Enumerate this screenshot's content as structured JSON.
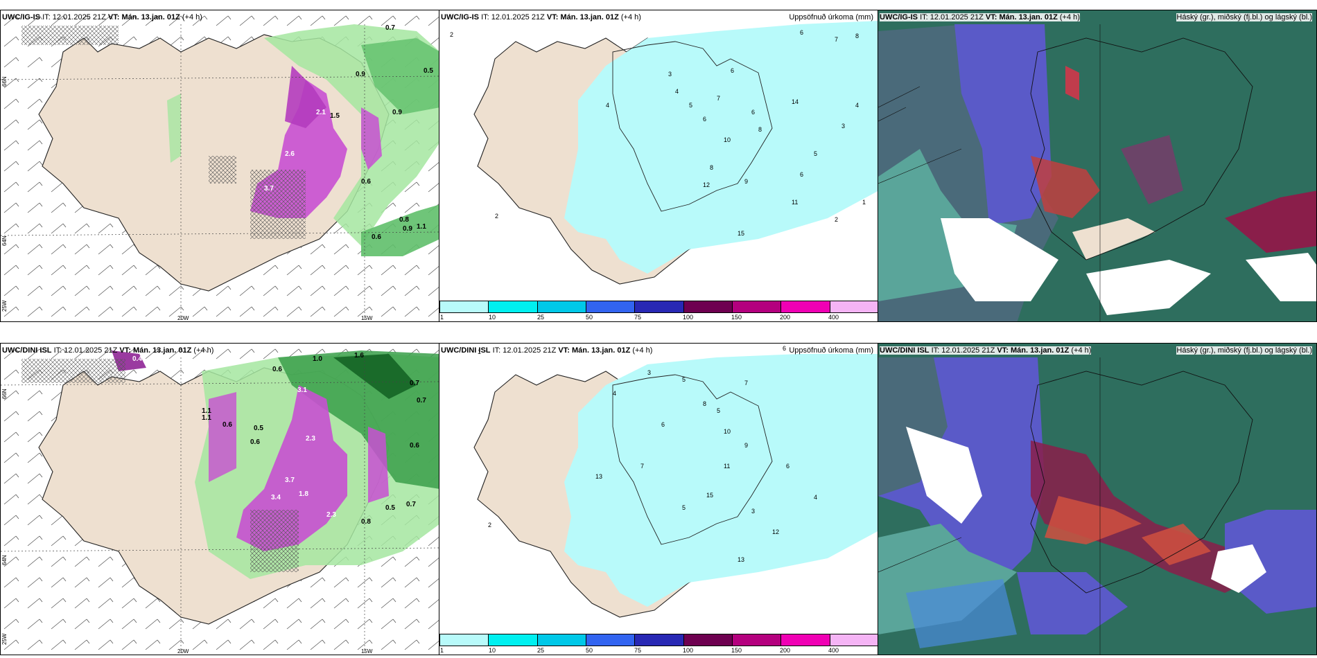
{
  "rows": [
    {
      "left": {
        "model": "UWC/IG-IS",
        "it_label": "IT:",
        "it": "12.01.2025 21Z",
        "vt_label": "VT:",
        "vt": "Mán. 13.jan. 01Z",
        "lead": "(+4 h)"
      },
      "middle": {
        "model": "UWC/IG-IS",
        "it_label": "IT:",
        "it": "12.01.2025 21Z",
        "vt_label": "VT:",
        "vt": "Mán. 13.jan. 01Z",
        "lead": "(+4 h)",
        "right_title": "Uppsöfnuð úrkoma (mm)"
      },
      "right": {
        "model": "UWC/IG-IS",
        "it_label": "IT:",
        "it": "12.01.2025 21Z",
        "vt_label": "VT:",
        "vt": "Mán. 13.jan. 01Z",
        "lead": "(+4 h)",
        "right_title": "Háský (gr.), miðský (fj.bl.) og lágský (bl.)"
      }
    },
    {
      "left": {
        "model": "UWC/DINI ISL",
        "it_label": "IT:",
        "it": "12.01.2025 21Z",
        "vt_label": "VT:",
        "vt": "Mán. 13.jan. 01Z",
        "lead": "(+4 h)"
      },
      "middle": {
        "model": "UWC/DINI ISL",
        "it_label": "IT:",
        "it": "12.01.2025 21Z",
        "vt_label": "VT:",
        "vt": "Mán. 13.jan. 01Z",
        "lead": "(+4 h)",
        "right_title": "Uppsöfnuð úrkoma (mm)"
      },
      "right": {
        "model": "UWC/DINI ISL",
        "it_label": "IT:",
        "it": "12.01.2025 21Z",
        "vt_label": "VT:",
        "vt": "Mán. 13.jan. 01Z",
        "lead": "(+4 h)",
        "right_title": "Háský (gr.), miðský (fj.bl.) og lágský (bl.)"
      }
    }
  ],
  "grid_labels": {
    "lon20": "20W",
    "lon15": "15W",
    "lat66": "66N",
    "lat64": "64N",
    "lon25": "25W"
  },
  "colorbar": {
    "ticks": [
      "1",
      "10",
      "25",
      "50",
      "75",
      "100",
      "150",
      "200",
      "400"
    ],
    "colors": [
      "#b8fafa",
      "#00f0f0",
      "#00c8e8",
      "#3264f0",
      "#2828b4",
      "#6e0050",
      "#b4007e",
      "#f000b4",
      "#f5b4f5"
    ]
  },
  "top_precip_values": [
    "0.7",
    "0.5",
    "0.9",
    "0.9",
    "2.1",
    "1.5",
    "0.8",
    "0.9",
    "0.6",
    "2.6",
    "3.7",
    "0.6",
    "1.1"
  ],
  "bottom_precip_values": [
    "1.0",
    "0.6",
    "1.6",
    "0.7",
    "0.7",
    "3.1",
    "2.3",
    "1.1",
    "0.6",
    "0.5",
    "3.7",
    "3.4",
    "1.8",
    "2.3",
    "0.6",
    "0.5",
    "0.7",
    "0.4",
    "1.1",
    "0.8",
    "0.6"
  ],
  "top_accum_values": [
    "2",
    "6",
    "7",
    "8",
    "6",
    "3",
    "4",
    "5",
    "6",
    "7",
    "4",
    "6",
    "8",
    "14",
    "4",
    "3",
    "5",
    "2",
    "10",
    "8",
    "6",
    "9",
    "12",
    "11",
    "1",
    "2",
    "15"
  ],
  "bottom_accum_values": [
    "1",
    "6",
    "3",
    "5",
    "7",
    "4",
    "8",
    "5",
    "6",
    "10",
    "9",
    "11",
    "13",
    "15",
    "7",
    "5",
    "3",
    "2",
    "4",
    "6",
    "12",
    "13"
  ]
}
